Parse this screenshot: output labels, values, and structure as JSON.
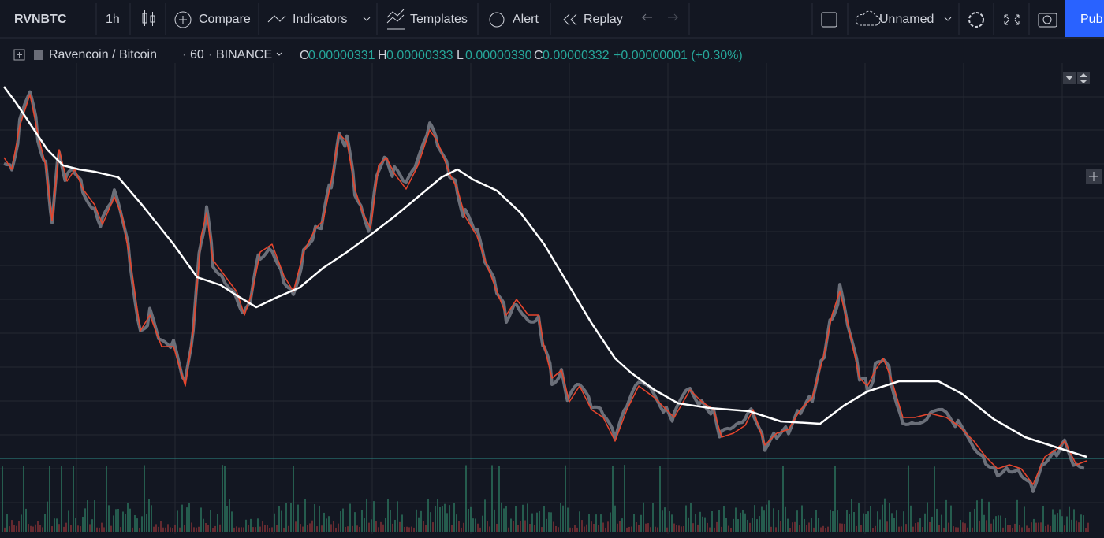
{
  "toolbar": {
    "symbol": "RVNBTC",
    "interval": "1h",
    "compare": "Compare",
    "indicators": "Indicators",
    "templates": "Templates",
    "alert": "Alert",
    "replay": "Replay",
    "layout": "Unnamed",
    "publish": "Pub"
  },
  "legend": {
    "symbol": "Ravencoin / Bitcoin",
    "interval": "60",
    "exchange": "BINANCE",
    "ohlc": [
      {
        "label": "O",
        "value": "0.00000331"
      },
      {
        "label": "H",
        "value": "0.00000333"
      },
      {
        "label": "L",
        "value": "0.00000330"
      },
      {
        "label": "C",
        "value": "0.00000332"
      }
    ],
    "change": "+0.00000001 (+0.30%)"
  }
}
